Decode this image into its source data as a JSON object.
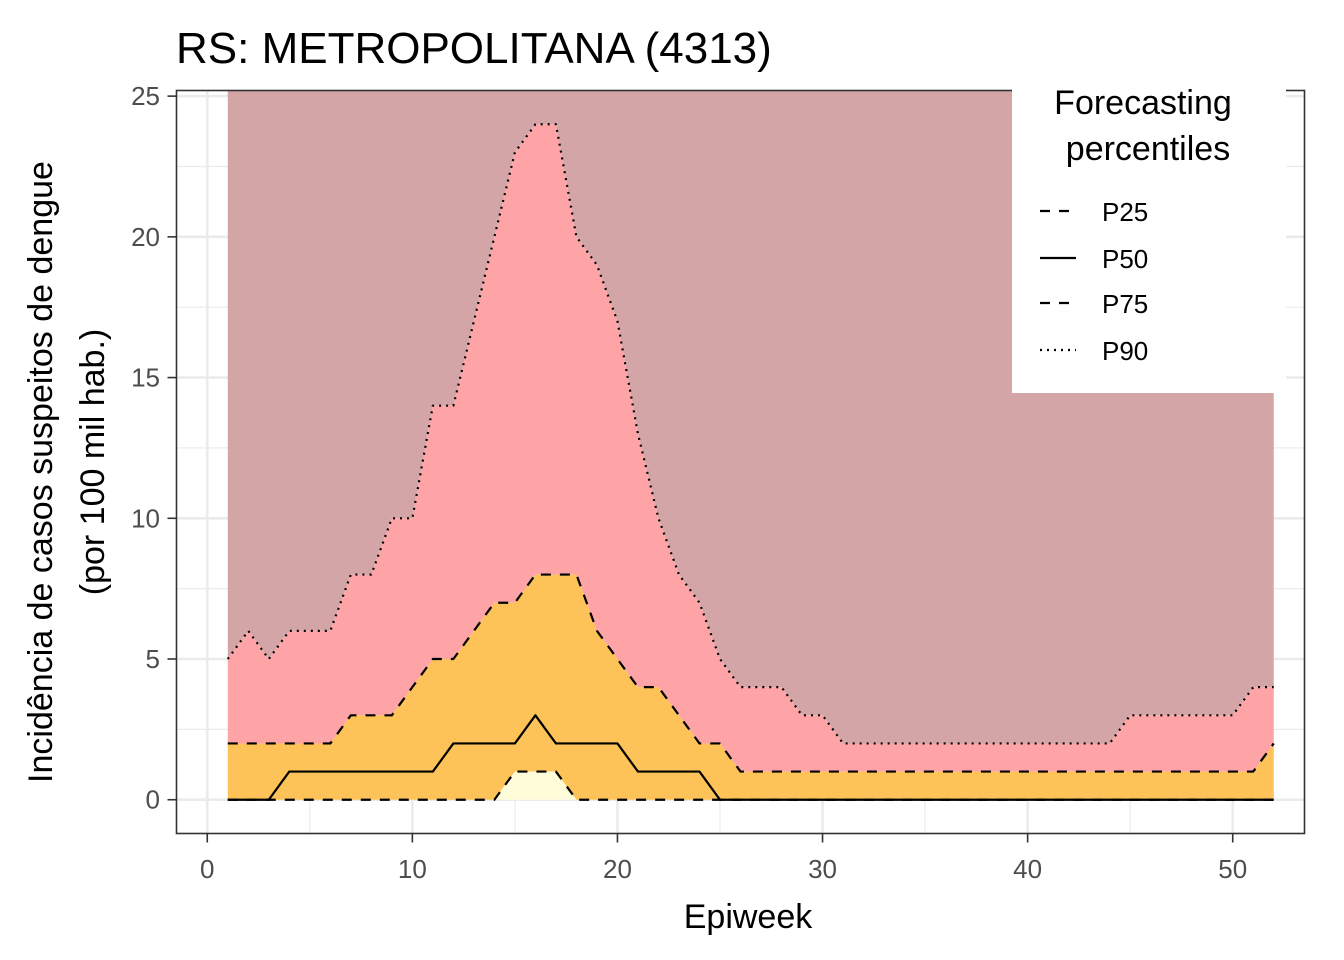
{
  "chart_data": {
    "type": "area",
    "title": "RS: METROPOLITANA (4313)",
    "xlabel": "Epiweek",
    "ylabel_lines": [
      "Incidência de casos suspeitos de dengue",
      "(por 100 mil hab.)"
    ],
    "xlim": [
      -1.5,
      53.5
    ],
    "ylim": [
      -1.2,
      25.2
    ],
    "x_ticks": [
      0,
      10,
      20,
      30,
      40,
      50
    ],
    "y_ticks": [
      0,
      5,
      10,
      15,
      20,
      25
    ],
    "grid": true,
    "legend": {
      "title_lines": [
        "Forecasting",
        "percentiles"
      ],
      "placement": "top-right",
      "entries": [
        {
          "label": "P25",
          "dash": "dashed"
        },
        {
          "label": "P50",
          "dash": "solid"
        },
        {
          "label": "P75",
          "dash": "dashed"
        },
        {
          "label": "P90",
          "dash": "dotted"
        }
      ]
    },
    "band_top": 25.2,
    "colors": {
      "above_p90": "#d4a5a6",
      "p75_p90": "#fea4a7",
      "p25_p75": "#fdc358",
      "below_p25": "#fffdd9",
      "line": "#000000"
    },
    "x": [
      1,
      2,
      3,
      4,
      5,
      6,
      7,
      8,
      9,
      10,
      11,
      12,
      13,
      14,
      15,
      16,
      17,
      18,
      19,
      20,
      21,
      22,
      23,
      24,
      25,
      26,
      27,
      28,
      29,
      30,
      31,
      32,
      33,
      34,
      35,
      36,
      37,
      38,
      39,
      40,
      41,
      42,
      43,
      44,
      45,
      46,
      47,
      48,
      49,
      50,
      51,
      52
    ],
    "series": [
      {
        "name": "P25",
        "values": [
          0,
          0,
          0,
          0,
          0,
          0,
          0,
          0,
          0,
          0,
          0,
          0,
          0,
          0,
          1,
          1,
          1,
          0,
          0,
          0,
          0,
          0,
          0,
          0,
          0,
          0,
          0,
          0,
          0,
          0,
          0,
          0,
          0,
          0,
          0,
          0,
          0,
          0,
          0,
          0,
          0,
          0,
          0,
          0,
          0,
          0,
          0,
          0,
          0,
          0,
          0,
          0
        ]
      },
      {
        "name": "P50",
        "values": [
          0,
          0,
          0,
          1,
          1,
          1,
          1,
          1,
          1,
          1,
          1,
          2,
          2,
          2,
          2,
          3,
          2,
          2,
          2,
          2,
          1,
          1,
          1,
          1,
          0,
          0,
          0,
          0,
          0,
          0,
          0,
          0,
          0,
          0,
          0,
          0,
          0,
          0,
          0,
          0,
          0,
          0,
          0,
          0,
          0,
          0,
          0,
          0,
          0,
          0,
          0,
          0
        ]
      },
      {
        "name": "P75",
        "values": [
          2,
          2,
          2,
          2,
          2,
          2,
          3,
          3,
          3,
          4,
          5,
          5,
          6,
          7,
          7,
          8,
          8,
          8,
          6,
          5,
          4,
          4,
          3,
          2,
          2,
          1,
          1,
          1,
          1,
          1,
          1,
          1,
          1,
          1,
          1,
          1,
          1,
          1,
          1,
          1,
          1,
          1,
          1,
          1,
          1,
          1,
          1,
          1,
          1,
          1,
          1,
          2
        ]
      },
      {
        "name": "P90",
        "values": [
          5,
          6,
          5,
          6,
          6,
          6,
          8,
          8,
          10,
          10,
          14,
          14,
          17,
          20,
          23,
          24,
          24,
          20,
          19,
          17,
          13,
          10,
          8,
          7,
          5,
          4,
          4,
          4,
          3,
          3,
          2,
          2,
          2,
          2,
          2,
          2,
          2,
          2,
          2,
          2,
          2,
          2,
          2,
          2,
          3,
          3,
          3,
          3,
          3,
          3,
          4,
          4
        ]
      }
    ]
  }
}
